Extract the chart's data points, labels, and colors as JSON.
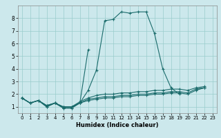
{
  "title": "",
  "xlabel": "Humidex (Indice chaleur)",
  "bg_color": "#cce8ec",
  "grid_color": "#99cccc",
  "line_color": "#1a6b6b",
  "xlim": [
    -0.5,
    23.5
  ],
  "ylim": [
    0.5,
    9.0
  ],
  "xticks": [
    0,
    1,
    2,
    3,
    4,
    5,
    6,
    7,
    8,
    9,
    10,
    11,
    12,
    13,
    14,
    15,
    16,
    17,
    18,
    19,
    20,
    21,
    22,
    23
  ],
  "yticks": [
    1,
    2,
    3,
    4,
    5,
    6,
    7,
    8
  ],
  "lines": [
    {
      "x": [
        0,
        1,
        2,
        3,
        4,
        5,
        6,
        7,
        8,
        9,
        10,
        11,
        12,
        13,
        14,
        15,
        16,
        17,
        18,
        19,
        20,
        21,
        22
      ],
      "y": [
        1.7,
        1.3,
        1.5,
        1.0,
        1.3,
        0.9,
        0.9,
        1.3,
        2.3,
        3.9,
        7.8,
        7.9,
        8.5,
        8.4,
        8.5,
        8.5,
        6.8,
        4.0,
        2.5,
        2.0,
        null,
        2.4,
        2.5
      ]
    },
    {
      "x": [
        0,
        1,
        2,
        3,
        4,
        5,
        6,
        7,
        8
      ],
      "y": [
        1.7,
        1.3,
        1.5,
        1.0,
        1.3,
        0.9,
        0.9,
        1.3,
        5.5
      ]
    },
    {
      "x": [
        0,
        1,
        2,
        3,
        4,
        5,
        6,
        7,
        8,
        9,
        10,
        11,
        12,
        13,
        14,
        15,
        16,
        17,
        18,
        19,
        20,
        21,
        22
      ],
      "y": [
        1.7,
        1.3,
        1.5,
        1.1,
        1.3,
        1.0,
        1.0,
        1.3,
        1.5,
        1.6,
        1.7,
        1.7,
        1.8,
        1.8,
        1.9,
        1.9,
        2.0,
        2.0,
        2.1,
        2.1,
        2.0,
        2.3,
        2.5
      ]
    },
    {
      "x": [
        0,
        1,
        2,
        3,
        4,
        5,
        6,
        7,
        8,
        9,
        10,
        11,
        12,
        13,
        14,
        15,
        16,
        17,
        18,
        19,
        20,
        21,
        22
      ],
      "y": [
        1.7,
        1.3,
        1.5,
        1.1,
        1.3,
        1.0,
        1.0,
        1.3,
        1.6,
        1.7,
        1.8,
        1.8,
        1.9,
        1.9,
        2.0,
        2.0,
        2.1,
        2.1,
        2.2,
        2.2,
        2.1,
        2.4,
        2.5
      ]
    },
    {
      "x": [
        0,
        1,
        2,
        3,
        4,
        5,
        6,
        7,
        8,
        9,
        10,
        11,
        12,
        13,
        14,
        15,
        16,
        17,
        18,
        19,
        20,
        21,
        22
      ],
      "y": [
        1.7,
        1.3,
        1.5,
        1.1,
        1.3,
        1.0,
        1.0,
        1.4,
        1.7,
        1.9,
        2.0,
        2.0,
        2.1,
        2.1,
        2.2,
        2.2,
        2.3,
        2.3,
        2.4,
        2.4,
        2.3,
        2.5,
        2.6
      ]
    }
  ]
}
